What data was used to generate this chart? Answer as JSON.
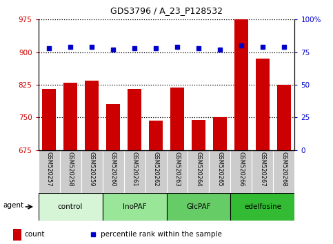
{
  "title": "GDS3796 / A_23_P128532",
  "samples": [
    "GSM520257",
    "GSM520258",
    "GSM520259",
    "GSM520260",
    "GSM520261",
    "GSM520262",
    "GSM520263",
    "GSM520264",
    "GSM520265",
    "GSM520266",
    "GSM520267",
    "GSM520268"
  ],
  "counts": [
    815,
    830,
    835,
    780,
    815,
    743,
    818,
    745,
    750,
    975,
    885,
    825
  ],
  "percentile_ranks": [
    78,
    79,
    79,
    77,
    78,
    78,
    79,
    78,
    77,
    80,
    79,
    79
  ],
  "bar_color": "#cc0000",
  "dot_color": "#0000cc",
  "ylim_left": [
    675,
    975
  ],
  "ylim_right": [
    0,
    100
  ],
  "yticks_left": [
    675,
    750,
    825,
    900,
    975
  ],
  "yticks_right": [
    0,
    25,
    50,
    75,
    100
  ],
  "groups": [
    {
      "label": "control",
      "start": 0,
      "end": 3,
      "color": "#d6f5d6"
    },
    {
      "label": "InoPAF",
      "start": 3,
      "end": 6,
      "color": "#99e699"
    },
    {
      "label": "GlcPAF",
      "start": 6,
      "end": 9,
      "color": "#66cc66"
    },
    {
      "label": "edelfosine",
      "start": 9,
      "end": 12,
      "color": "#33bb33"
    }
  ],
  "agent_label": "agent",
  "legend_count_label": "count",
  "legend_pct_label": "percentile rank within the sample",
  "background_color": "#ffffff"
}
